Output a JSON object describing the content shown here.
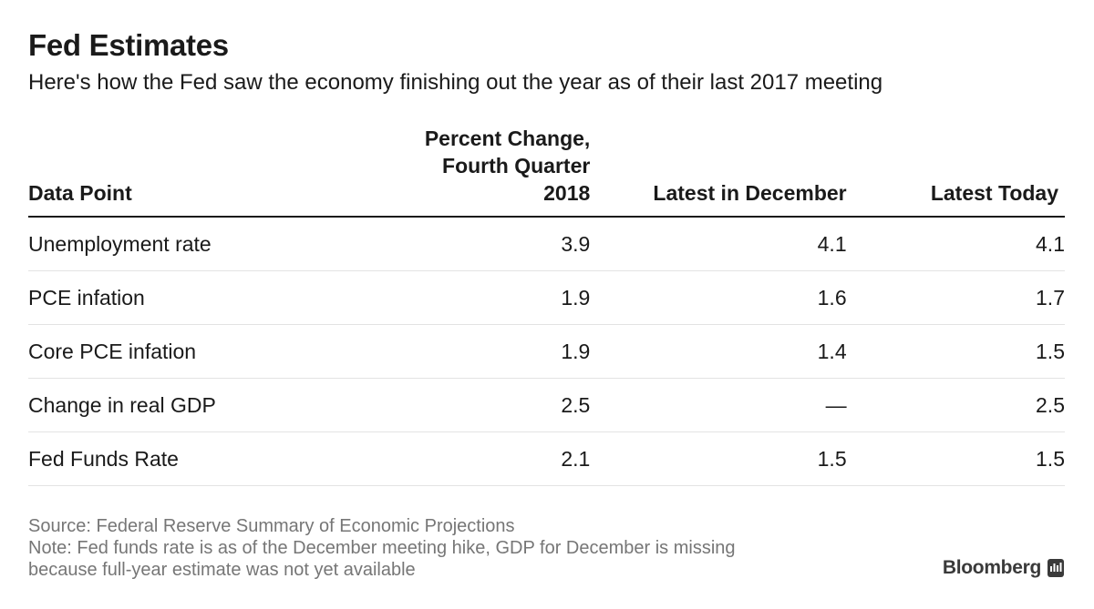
{
  "title": "Fed Estimates",
  "subtitle": "Here's how the Fed saw the economy finishing out the year as of their last 2017 meeting",
  "chart_data": {
    "type": "table",
    "columns": [
      "Data Point",
      "Percent Change, Fourth Quarter 2018",
      "Latest in December",
      "Latest Today"
    ],
    "column_header_lines": {
      "col2": [
        "Percent Change,",
        "Fourth Quarter",
        "2018"
      ]
    },
    "rows": [
      {
        "name": "Unemployment rate",
        "projection": "3.9",
        "december": "4.1",
        "today": "4.1"
      },
      {
        "name": "PCE infation",
        "projection": "1.9",
        "december": "1.6",
        "today": "1.7"
      },
      {
        "name": "Core PCE infation",
        "projection": "1.9",
        "december": "1.4",
        "today": "1.5"
      },
      {
        "name": "Change in real GDP",
        "projection": "2.5",
        "december": "—",
        "today": "2.5"
      },
      {
        "name": "Fed Funds Rate",
        "projection": "2.1",
        "december": "1.5",
        "today": "1.5"
      }
    ]
  },
  "footer": {
    "source": "Source: Federal Reserve Summary of Economic Projections",
    "note_line1": "Note: Fed funds rate is as of the December meeting hike, GDP for December is missing",
    "note_line2": "because full-year estimate was not yet available"
  },
  "brand": {
    "name": "Bloomberg",
    "icon": "bloomberg-terminal-icon",
    "color": "#3a3a3a"
  }
}
